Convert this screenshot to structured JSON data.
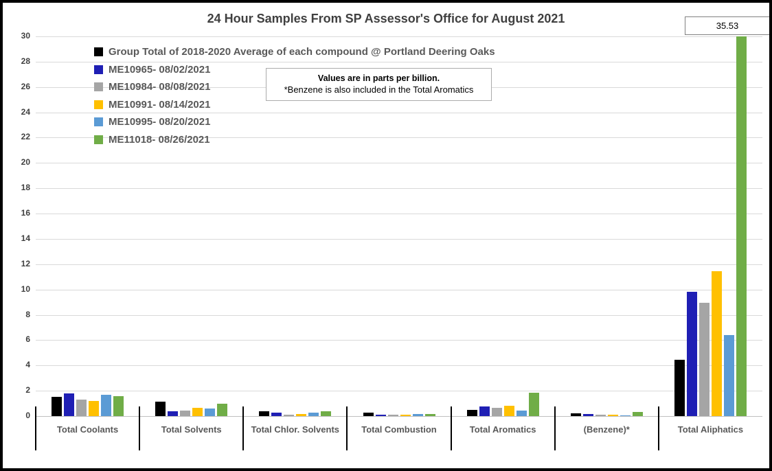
{
  "title": "24 Hour Samples From SP Assessor's Office for August 2021",
  "note": {
    "line1": "Values are in parts per billion.",
    "line2": "*Benzene is also included in the Total Aromatics"
  },
  "callout": {
    "value": "35.53"
  },
  "colors": {
    "black_series": "#000000",
    "dark_blue_series": "#1f1fb4",
    "gray_series": "#a5a5a5",
    "gold_series": "#ffc000",
    "light_blue_series": "#5b9bd5",
    "green_series": "#70ad47",
    "gridline": "#d9d9d9",
    "axis_text": "#404040",
    "category_text": "#595959"
  },
  "chart_data": {
    "type": "bar",
    "title": "24 Hour Samples From SP Assessor's Office for August 2021",
    "unit": "parts per billion",
    "xlabel": "",
    "ylabel": "",
    "ylim": [
      0,
      30
    ],
    "yticks": [
      0,
      2,
      4,
      6,
      8,
      10,
      12,
      14,
      16,
      18,
      20,
      22,
      24,
      26,
      28,
      30
    ],
    "grid": true,
    "legend_position": "top-left",
    "categories": [
      "Total Coolants",
      "Total Solvents",
      "Total Chlor. Solvents",
      "Total Combustion",
      "Total Aromatics",
      "(Benzene)*",
      "Total Aliphatics"
    ],
    "series": [
      {
        "name": "Group Total of 2018-2020 Average of each compound @ Portland Deering Oaks",
        "color": "#000000",
        "values": [
          1.5,
          1.15,
          0.4,
          0.25,
          0.5,
          0.2,
          4.45
        ]
      },
      {
        "name": "ME10965- 08/02/2021",
        "color": "#1f1fb4",
        "values": [
          1.8,
          0.4,
          0.25,
          0.1,
          0.75,
          0.14,
          9.8
        ]
      },
      {
        "name": "ME10984- 08/08/2021",
        "color": "#a5a5a5",
        "values": [
          1.3,
          0.45,
          0.12,
          0.1,
          0.65,
          0.13,
          8.95
        ]
      },
      {
        "name": "ME10991- 08/14/2021",
        "color": "#ffc000",
        "values": [
          1.2,
          0.65,
          0.17,
          0.12,
          0.8,
          0.13,
          11.45
        ]
      },
      {
        "name": "ME10995- 08/20/2021",
        "color": "#5b9bd5",
        "values": [
          1.7,
          0.6,
          0.28,
          0.16,
          0.45,
          0.08,
          6.4
        ]
      },
      {
        "name": "ME11018- 08/26/2021",
        "color": "#70ad47",
        "values": [
          1.6,
          1.0,
          0.4,
          0.15,
          1.85,
          0.32,
          35.53
        ]
      }
    ],
    "clipped_bar_label": {
      "series": "ME11018- 08/26/2021",
      "category": "Total Aliphatics",
      "value": 35.53,
      "note": "bar exceeds y-axis max of 30; value shown in box at top right"
    }
  }
}
